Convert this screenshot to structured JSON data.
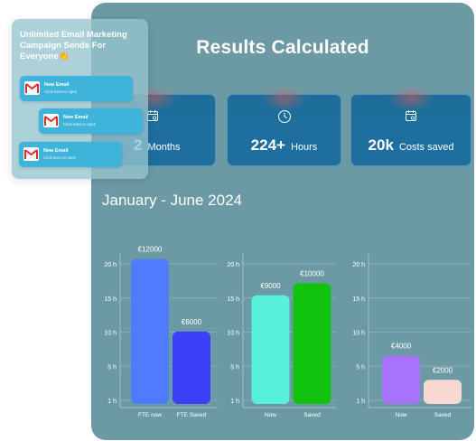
{
  "panel": {
    "title": "Results Calculated",
    "period": "January - June 2024"
  },
  "stats": [
    {
      "value": "2",
      "unit": "Months",
      "icon": "calendar-icon"
    },
    {
      "value": "224+",
      "unit": "Hours",
      "icon": "clock-icon"
    },
    {
      "value": "20k",
      "unit": "Costs saved",
      "icon": "calendar-icon"
    }
  ],
  "notification": {
    "title": "Unlimited Email Marketing Campaign Sends For Everyone👏",
    "items": [
      {
        "title": "New Email",
        "subtitle": "Click here to open",
        "icon": "gmail-icon"
      },
      {
        "title": "New Email",
        "subtitle": "Click here to open",
        "icon": "gmail-icon"
      },
      {
        "title": "New Email",
        "subtitle": "Click here to open",
        "icon": "gmail-icon"
      }
    ]
  },
  "colors": {
    "panel": "#6c9aa4",
    "card": "#1e6f9e",
    "bar_fte_now": "#4f7bff",
    "bar_fte_saved": "#3a40f5",
    "bar_now_2": "#56f0db",
    "bar_saved_2": "#11c20f",
    "bar_now_3": "#a874ff",
    "bar_saved_3": "#f9d8d2"
  },
  "chart_data": [
    {
      "type": "bar",
      "yticks": [
        "1 h",
        "5 h",
        "10 h",
        "15 h",
        "20 h"
      ],
      "categories": [
        "FTE now",
        "FTE Saved"
      ],
      "values": [
        12000,
        6000
      ],
      "data_labels": [
        "€12000",
        "€6000"
      ],
      "colors": [
        "#4f7bff",
        "#3a40f5"
      ]
    },
    {
      "type": "bar",
      "yticks": [
        "1 h",
        "5 h",
        "10 h",
        "15 h",
        "20 h"
      ],
      "categories": [
        "Now",
        "Saved"
      ],
      "values": [
        9000,
        10000
      ],
      "data_labels": [
        "€9000",
        "€10000"
      ],
      "colors": [
        "#56f0db",
        "#11c20f"
      ]
    },
    {
      "type": "bar",
      "yticks": [
        "1 h",
        "5 h",
        "10 h",
        "15 h",
        "20 h"
      ],
      "categories": [
        "Now",
        "Saved"
      ],
      "values": [
        4000,
        2000
      ],
      "data_labels": [
        "€4000",
        "€2000"
      ],
      "colors": [
        "#a874ff",
        "#f9d8d2"
      ]
    }
  ]
}
